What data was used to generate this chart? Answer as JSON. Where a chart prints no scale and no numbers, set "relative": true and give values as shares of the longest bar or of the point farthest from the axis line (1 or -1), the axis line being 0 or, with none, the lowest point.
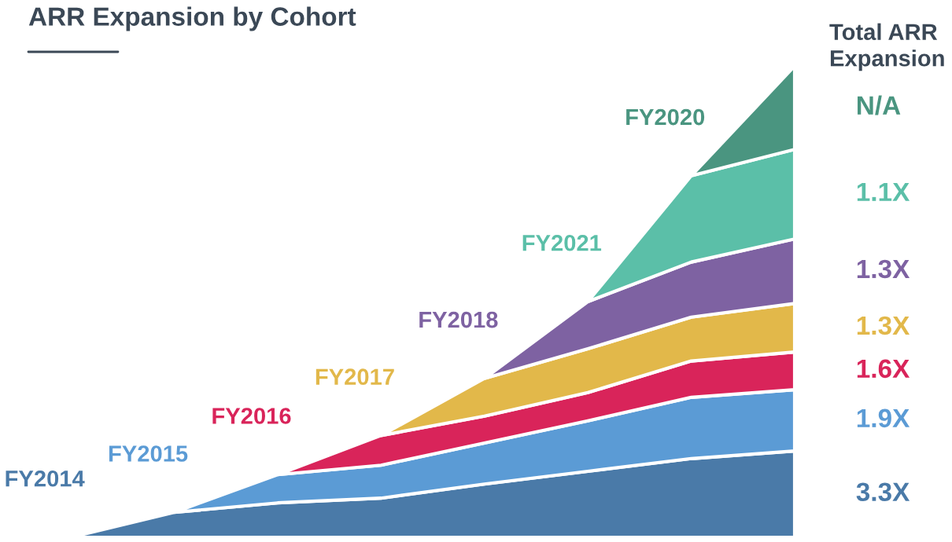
{
  "chart_data": {
    "type": "area",
    "title": "ARR Expansion by Cohort",
    "stacked": true,
    "relative": true,
    "categories": [
      null,
      null,
      null,
      null,
      null,
      null,
      null,
      null
    ],
    "series": [
      {
        "name": "FY2014",
        "color": "#4a7aa8",
        "values": [
          0,
          0.053,
          0.073,
          0.083,
          0.113,
          0.14,
          0.167,
          0.183
        ]
      },
      {
        "name": "FY2015",
        "color": "#5b9bd5",
        "values": [
          null,
          0,
          0.06,
          0.07,
          0.087,
          0.107,
          0.13,
          0.13
        ]
      },
      {
        "name": "FY2016",
        "color": "#d9245a",
        "values": [
          null,
          null,
          0,
          0.063,
          0.057,
          0.06,
          0.077,
          0.08
        ]
      },
      {
        "name": "FY2017",
        "color": "#e2b84a",
        "values": [
          null,
          null,
          null,
          0,
          0.08,
          0.093,
          0.093,
          0.103
        ]
      },
      {
        "name": "FY2018",
        "color": "#7e62a2",
        "values": [
          null,
          null,
          null,
          null,
          0,
          0.1,
          0.117,
          0.137
        ]
      },
      {
        "name": "FY2021",
        "color": "#5bbfa8",
        "values": [
          null,
          null,
          null,
          null,
          null,
          0,
          0.183,
          0.19
        ]
      },
      {
        "name": "FY2020",
        "color": "#4a9580",
        "values": [
          null,
          null,
          null,
          null,
          null,
          null,
          0,
          0.177
        ]
      }
    ],
    "annotations": [
      "Total ARR Expansion",
      "N/A",
      "1.1X",
      "1.3X",
      "1.3X",
      "1.6X",
      "1.9X",
      "3.3X"
    ]
  }
}
